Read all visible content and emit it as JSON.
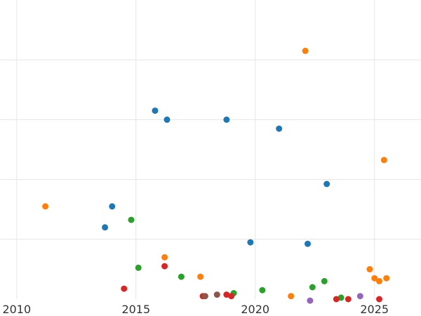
{
  "chart_data": {
    "type": "scatter",
    "title": "",
    "xlabel": "",
    "ylabel": "",
    "x_ticks": [
      "2010",
      "2015",
      "2020",
      "2025"
    ],
    "x_tick_values": [
      2010,
      2015,
      2020,
      2025
    ],
    "xlim": [
      2009.3,
      2026.95
    ],
    "ylim": [
      0,
      10
    ],
    "y_gridlines": [
      2,
      4,
      6,
      8
    ],
    "grid": true,
    "series": [
      {
        "color": "#1f77b4",
        "points": [
          {
            "x": 2013.7,
            "y": 2.4
          },
          {
            "x": 2014.0,
            "y": 3.1
          },
          {
            "x": 2015.8,
            "y": 6.3
          },
          {
            "x": 2016.3,
            "y": 6.0
          },
          {
            "x": 2018.8,
            "y": 6.0
          },
          {
            "x": 2019.8,
            "y": 1.9
          },
          {
            "x": 2021.0,
            "y": 5.7
          },
          {
            "x": 2022.2,
            "y": 1.85
          },
          {
            "x": 2023.0,
            "y": 3.85
          }
        ]
      },
      {
        "color": "#ff7f0e",
        "points": [
          {
            "x": 2011.2,
            "y": 3.1
          },
          {
            "x": 2016.2,
            "y": 1.4
          },
          {
            "x": 2017.7,
            "y": 0.75
          },
          {
            "x": 2021.5,
            "y": 0.1
          },
          {
            "x": 2022.1,
            "y": 8.3
          },
          {
            "x": 2024.8,
            "y": 1.0
          },
          {
            "x": 2025.0,
            "y": 0.7
          },
          {
            "x": 2025.2,
            "y": 0.6
          },
          {
            "x": 2025.4,
            "y": 4.65
          },
          {
            "x": 2025.5,
            "y": 0.7
          }
        ]
      },
      {
        "color": "#2ca02c",
        "points": [
          {
            "x": 2014.8,
            "y": 2.65
          },
          {
            "x": 2015.1,
            "y": 1.05
          },
          {
            "x": 2016.9,
            "y": 0.75
          },
          {
            "x": 2019.1,
            "y": 0.2
          },
          {
            "x": 2020.3,
            "y": 0.3
          },
          {
            "x": 2022.4,
            "y": 0.4
          },
          {
            "x": 2022.9,
            "y": 0.6
          },
          {
            "x": 2023.6,
            "y": 0.05
          }
        ]
      },
      {
        "color": "#d62728",
        "points": [
          {
            "x": 2014.5,
            "y": 0.35
          },
          {
            "x": 2016.2,
            "y": 1.1
          },
          {
            "x": 2017.8,
            "y": 0.1
          },
          {
            "x": 2018.8,
            "y": 0.15
          },
          {
            "x": 2019.0,
            "y": 0.1
          },
          {
            "x": 2023.4,
            "y": 0.0
          },
          {
            "x": 2023.9,
            "y": 0.0
          },
          {
            "x": 2025.2,
            "y": 0.0
          }
        ]
      },
      {
        "color": "#9467bd",
        "points": [
          {
            "x": 2022.3,
            "y": -0.05
          },
          {
            "x": 2024.4,
            "y": 0.1
          }
        ]
      },
      {
        "color": "#8c564b",
        "points": [
          {
            "x": 2017.9,
            "y": 0.1
          },
          {
            "x": 2018.4,
            "y": 0.15
          }
        ]
      }
    ]
  }
}
